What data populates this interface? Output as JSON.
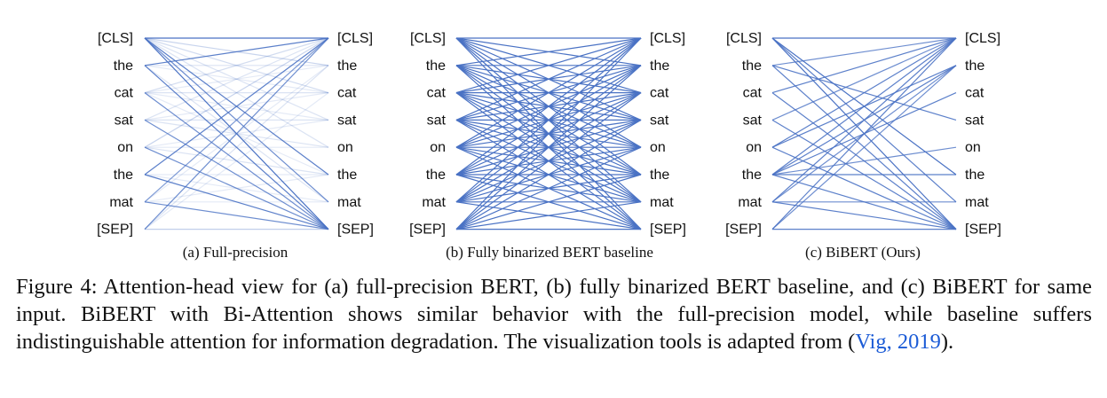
{
  "colors": {
    "edge": "#4a72c4",
    "text": "#111111",
    "citation": "#1b5bd6"
  },
  "tokens": [
    "[CLS]",
    "the",
    "cat",
    "sat",
    "on",
    "the",
    "mat",
    "[SEP]"
  ],
  "panels": [
    {
      "id": "a",
      "caption": "(a) Full-precision",
      "edges": [
        [
          0,
          0,
          1
        ],
        [
          0,
          7,
          1
        ],
        [
          0,
          5,
          0.9
        ],
        [
          0,
          6,
          0.8
        ],
        [
          1,
          0,
          0.9
        ],
        [
          1,
          7,
          0.9
        ],
        [
          2,
          7,
          0.8
        ],
        [
          3,
          7,
          0.8
        ],
        [
          4,
          7,
          0.8
        ],
        [
          5,
          7,
          0.9
        ],
        [
          6,
          7,
          0.8
        ],
        [
          5,
          0,
          0.9
        ],
        [
          6,
          0,
          0.7
        ],
        [
          7,
          0,
          0.8
        ],
        [
          0,
          1,
          0.3
        ],
        [
          0,
          2,
          0.25
        ],
        [
          0,
          3,
          0.2
        ],
        [
          1,
          1,
          0.2
        ],
        [
          2,
          2,
          0.2
        ],
        [
          3,
          3,
          0.2
        ],
        [
          1,
          2,
          0.15
        ],
        [
          2,
          3,
          0.15
        ],
        [
          3,
          4,
          0.2
        ],
        [
          4,
          5,
          0.2
        ],
        [
          5,
          6,
          0.15
        ],
        [
          6,
          5,
          0.15
        ],
        [
          2,
          0,
          0.25
        ],
        [
          3,
          0,
          0.2
        ],
        [
          4,
          0,
          0.3
        ],
        [
          1,
          6,
          0.2
        ],
        [
          2,
          5,
          0.15
        ],
        [
          4,
          4,
          0.15
        ],
        [
          7,
          7,
          0.35
        ],
        [
          6,
          6,
          0.15
        ],
        [
          5,
          5,
          0.15
        ],
        [
          3,
          2,
          0.15
        ],
        [
          4,
          3,
          0.15
        ],
        [
          2,
          1,
          0.15
        ],
        [
          0,
          4,
          0.2
        ],
        [
          7,
          1,
          0.2
        ],
        [
          7,
          2,
          0.15
        ],
        [
          6,
          1,
          0.15
        ]
      ]
    },
    {
      "id": "b",
      "caption": "(b) Fully binarized BERT baseline",
      "edges": "all"
    },
    {
      "id": "c",
      "caption": "(c) BiBERT (Ours)",
      "edges": [
        [
          0,
          0,
          1
        ],
        [
          0,
          7,
          1
        ],
        [
          0,
          6,
          0.9
        ],
        [
          0,
          5,
          1
        ],
        [
          1,
          7,
          0.9
        ],
        [
          1,
          3,
          0.9
        ],
        [
          1,
          0,
          0.8
        ],
        [
          2,
          0,
          0.9
        ],
        [
          2,
          7,
          0.9
        ],
        [
          3,
          7,
          0.9
        ],
        [
          3,
          0,
          0.8
        ],
        [
          4,
          0,
          0.9
        ],
        [
          4,
          7,
          0.9
        ],
        [
          4,
          1,
          0.9
        ],
        [
          5,
          0,
          0.9
        ],
        [
          5,
          7,
          0.9
        ],
        [
          5,
          2,
          0.9
        ],
        [
          5,
          1,
          0.9
        ],
        [
          5,
          5,
          0.9
        ],
        [
          5,
          4,
          0.8
        ],
        [
          6,
          0,
          0.9
        ],
        [
          6,
          7,
          0.9
        ],
        [
          6,
          6,
          0.8
        ],
        [
          6,
          1,
          0.8
        ],
        [
          7,
          0,
          0.9
        ],
        [
          7,
          7,
          0.9
        ],
        [
          7,
          1,
          0.8
        ]
      ]
    }
  ],
  "caption": {
    "lead": "Figure 4:  Attention-head view for (a) full-precision BERT, (b) fully binarized BERT baseline, and (c) BiBERT for same input. BiBERT with Bi-Attention shows similar behavior with the full-precision model, while baseline suffers indistinguishable attention for information degradation. The visualization tools is adapted from (",
    "cite_author": "Vig",
    "cite_sep": ", ",
    "cite_year": "2019",
    "tail": ")."
  }
}
